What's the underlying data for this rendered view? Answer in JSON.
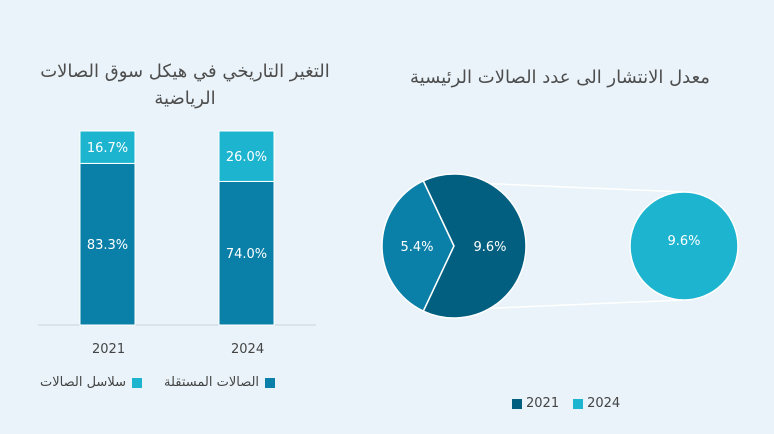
{
  "chart_data": [
    {
      "type": "bar",
      "stacked": true,
      "title": "التغير التاريخي في هيكل سوق الصالات الرياضية",
      "categories": [
        "2021",
        "2024"
      ],
      "series": [
        {
          "name": "الصالات المستقلة",
          "values": [
            83.3,
            74.0
          ],
          "labels": [
            "83.3%",
            "74.0%"
          ],
          "color": "#0a7fa8"
        },
        {
          "name": "سلاسل الصالات",
          "values": [
            16.7,
            26.0
          ],
          "labels": [
            "16.7%",
            "26.0%"
          ],
          "color": "#1cb4cf"
        }
      ],
      "ylim": [
        0,
        100
      ],
      "legend": [
        {
          "label": "الصالات المستقلة",
          "color": "#0a7fa8"
        },
        {
          "label": "سلاسل الصالات",
          "color": "#1cb4cf"
        }
      ]
    },
    {
      "type": "pie",
      "title": "معدل الانتشار الى عدد الصالات الرئيسية",
      "pie_2021": {
        "slices": [
          {
            "label": "9.6%",
            "value": 9.6,
            "color": "#035f80"
          },
          {
            "label": "5.4%",
            "value": 5.4,
            "color": "#0a7fa8"
          }
        ]
      },
      "circle_2024": {
        "label": "9.6%",
        "value": 9.6,
        "color": "#1cb4cf"
      },
      "legend": [
        {
          "label": "2021",
          "color": "#035f80"
        },
        {
          "label": "2024",
          "color": "#1cb4cf"
        }
      ]
    }
  ]
}
